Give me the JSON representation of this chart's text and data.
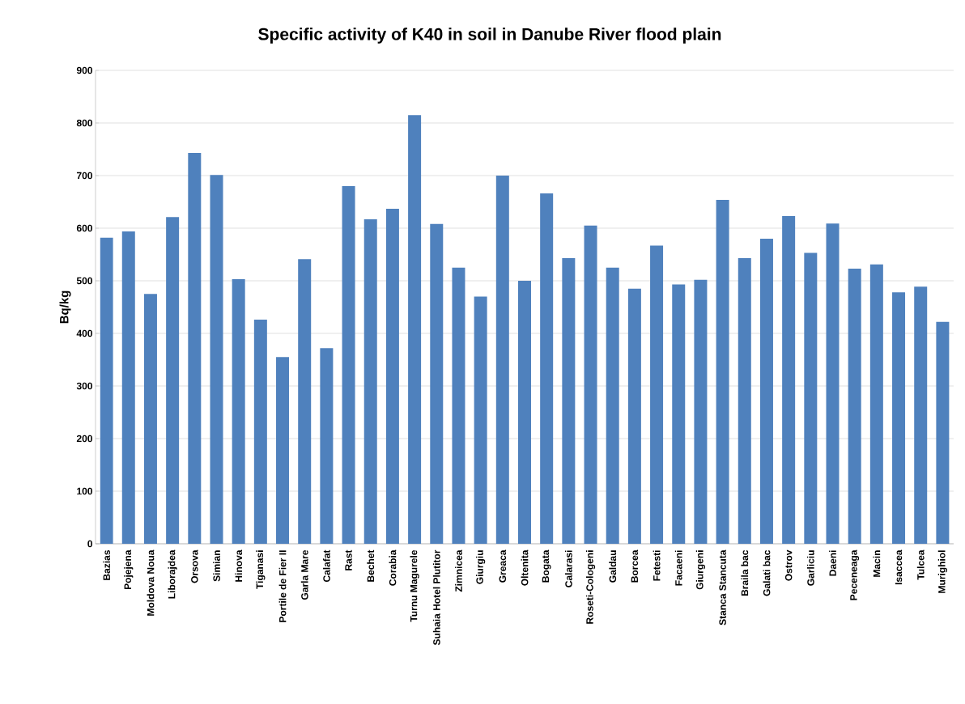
{
  "chart_data": {
    "type": "bar",
    "title": "Specific activity of K40 in soil in Danube River flood plain",
    "ylabel": "Bq/kg",
    "categories": [
      "Bazias",
      "Pojejena",
      "Moldova Noua",
      "Liborajdea",
      "Orsova",
      "Simian",
      "Hinova",
      "Tiganasi",
      "Portile de Fier II",
      "Garla Mare",
      "Calafat",
      "Rast",
      "Bechet",
      "Corabia",
      "Turnu Magurele",
      "Suhaia Hotel Plutitor",
      "Zimnicea",
      "Giurgiu",
      "Greaca",
      "Oltenita",
      "Bogata",
      "Calarasi",
      "Roseti-Cologeni",
      "Galdau",
      "Borcea",
      "Fetesti",
      "Facaeni",
      "Giurgeni",
      "Stanca Stancuta",
      "Braila bac",
      "Galati bac",
      "Ostrov",
      "Garliciu",
      "Daeni",
      "Peceneaga",
      "Macin",
      "Isaccea",
      "Tulcea",
      "Murighiol"
    ],
    "values": [
      582,
      594,
      475,
      621,
      743,
      701,
      503,
      426,
      355,
      541,
      372,
      680,
      617,
      637,
      815,
      608,
      525,
      470,
      700,
      500,
      666,
      543,
      605,
      525,
      485,
      567,
      493,
      502,
      654,
      543,
      580,
      623,
      553,
      609,
      523,
      531,
      478,
      489,
      422
    ],
    "color": "#4f81bd",
    "ylim": [
      0,
      900
    ],
    "yticks": [
      0,
      100,
      200,
      300,
      400,
      500,
      600,
      700,
      800,
      900
    ],
    "grid": "y"
  }
}
